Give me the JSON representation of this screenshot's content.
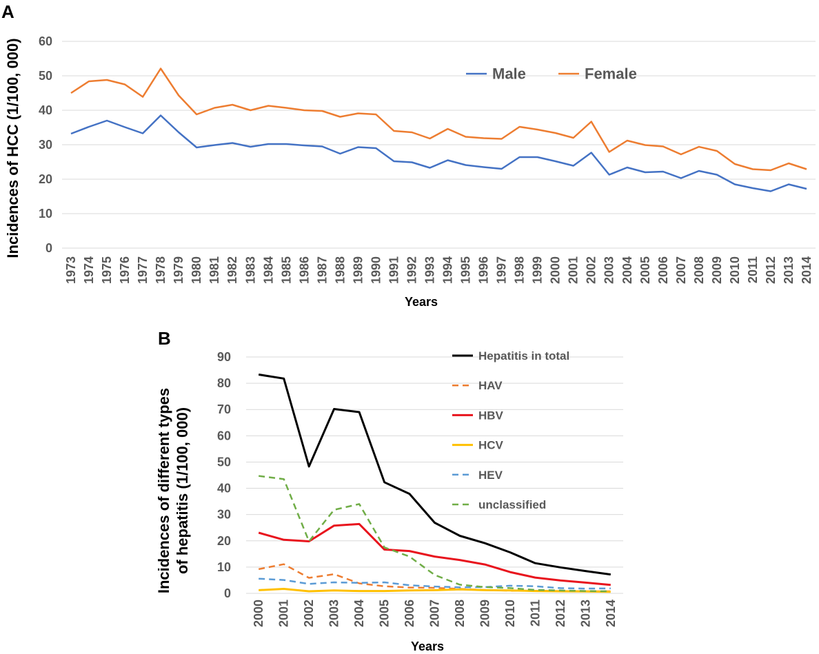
{
  "chart_data": [
    {
      "panel": "A",
      "type": "line",
      "panel_label": "A",
      "xlabel": "Years",
      "ylabel": "Incidences of HCC (1/100, 000)",
      "ylim": [
        0,
        60
      ],
      "yticks": [
        "0",
        "10",
        "20",
        "30",
        "40",
        "50",
        "60"
      ],
      "categories": [
        "1973",
        "1974",
        "1975",
        "1976",
        "1977",
        "1978",
        "1979",
        "1980",
        "1981",
        "1982",
        "1983",
        "1984",
        "1985",
        "1986",
        "1987",
        "1988",
        "1989",
        "1990",
        "1991",
        "1992",
        "1993",
        "1994",
        "1995",
        "1996",
        "1997",
        "1998",
        "1999",
        "2000",
        "2001",
        "2002",
        "2003",
        "2004",
        "2005",
        "2006",
        "2007",
        "2008",
        "2009",
        "2010",
        "2011",
        "2012",
        "2013",
        "2014"
      ],
      "legend_position": "top-right",
      "series": [
        {
          "name": "Male",
          "color": "#4472c4",
          "dash": "solid",
          "values": [
            33.2,
            35.2,
            37.0,
            35.1,
            33.3,
            38.5,
            33.6,
            29.2,
            29.9,
            30.5,
            29.4,
            30.2,
            30.2,
            29.8,
            29.5,
            27.4,
            29.3,
            29.0,
            25.2,
            24.9,
            23.3,
            25.5,
            24.1,
            23.5,
            23.0,
            26.4,
            26.4,
            25.2,
            23.9,
            27.7,
            21.3,
            23.4,
            22.0,
            22.2,
            20.3,
            22.4,
            21.3,
            18.5,
            17.4,
            16.5,
            18.5,
            17.2
          ]
        },
        {
          "name": "Female",
          "color": "#ed7d31",
          "dash": "solid",
          "values": [
            45.0,
            48.4,
            48.8,
            47.5,
            43.9,
            52.1,
            44.3,
            38.8,
            40.7,
            41.6,
            40.0,
            41.3,
            40.7,
            40.0,
            39.8,
            38.1,
            39.1,
            38.8,
            34.0,
            33.6,
            31.8,
            34.6,
            32.3,
            31.9,
            31.7,
            35.2,
            34.4,
            33.4,
            32.0,
            36.7,
            27.9,
            31.2,
            29.9,
            29.5,
            27.2,
            29.4,
            28.2,
            24.4,
            22.9,
            22.6,
            24.6,
            22.9
          ]
        }
      ]
    },
    {
      "panel": "B",
      "type": "line",
      "panel_label": "B",
      "xlabel": "Years",
      "ylabel_line1": "Incidences of different types",
      "ylabel_line2": "of hepatitis (1/100, 000)",
      "ylim": [
        0,
        90
      ],
      "yticks": [
        "0",
        "10",
        "20",
        "30",
        "40",
        "50",
        "60",
        "70",
        "80",
        "90"
      ],
      "categories": [
        "2000",
        "2001",
        "2002",
        "2003",
        "2004",
        "2005",
        "2006",
        "2007",
        "2008",
        "2009",
        "2010",
        "2011",
        "2012",
        "2013",
        "2014"
      ],
      "legend_position": "top-right",
      "series": [
        {
          "name": "Hepatitis in total",
          "color": "#000000",
          "dash": "solid",
          "values": [
            83.3,
            81.8,
            48.3,
            70.2,
            69.0,
            42.3,
            37.9,
            26.9,
            21.9,
            19.1,
            15.6,
            11.5,
            9.9,
            8.5,
            7.2
          ]
        },
        {
          "name": "HAV",
          "color": "#ed7d31",
          "dash": "dashed",
          "values": [
            9.2,
            11.1,
            5.9,
            7.3,
            3.8,
            2.7,
            2.2,
            2.1,
            1.7,
            1.3,
            1.0,
            1.0,
            0.9,
            0.8,
            0.8
          ]
        },
        {
          "name": "HBV",
          "color": "#e8141d",
          "dash": "solid",
          "values": [
            23.1,
            20.4,
            19.8,
            25.8,
            26.4,
            16.7,
            16.1,
            14.0,
            12.7,
            11.0,
            8.1,
            6.0,
            4.9,
            4.1,
            3.2
          ]
        },
        {
          "name": "HCV",
          "color": "#ffc000",
          "dash": "solid",
          "values": [
            1.2,
            1.7,
            0.8,
            1.1,
            0.9,
            0.9,
            1.1,
            1.2,
            1.5,
            1.2,
            1.1,
            0.9,
            0.8,
            0.7,
            0.6
          ]
        },
        {
          "name": "HEV",
          "color": "#5b9bd5",
          "dash": "dashed",
          "values": [
            5.6,
            5.1,
            3.6,
            4.2,
            4.0,
            4.2,
            3.1,
            2.6,
            2.3,
            2.4,
            2.9,
            2.7,
            2.0,
            1.8,
            1.9
          ]
        },
        {
          "name": "unclassified",
          "color": "#70ad47",
          "dash": "dashed",
          "values": [
            44.7,
            43.5,
            19.8,
            31.8,
            34.0,
            17.5,
            14.0,
            7.0,
            3.3,
            2.4,
            2.0,
            1.3,
            1.1,
            0.9,
            0.8
          ]
        }
      ]
    }
  ]
}
